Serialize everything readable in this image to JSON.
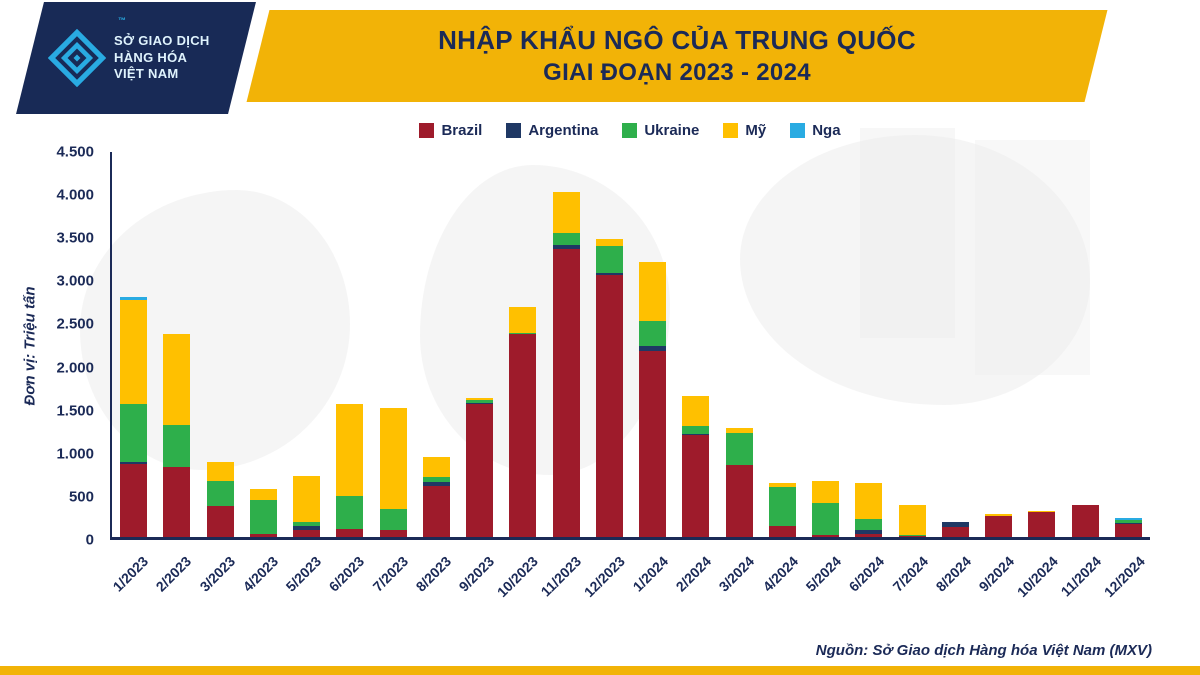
{
  "header": {
    "logo": {
      "line1": "SỞ GIAO DỊCH",
      "line2": "HÀNG HÓA",
      "line3": "VIỆT NAM",
      "tm": "™"
    },
    "title_line1": "NHẬP KHẨU NGÔ CỦA TRUNG QUỐC",
    "title_line2": "GIAI ĐOẠN 2023 - 2024"
  },
  "colors": {
    "navy": "#1B2A57",
    "banner_yellow": "#F2B307",
    "logo_cyan": "#29ABE2"
  },
  "chart_data": {
    "type": "bar",
    "stacked": true,
    "title": "NHẬP KHẨU NGÔ CỦA TRUNG QUỐC GIAI ĐOẠN 2023 - 2024",
    "ylabel": "Đơn vị: Triệu tấn",
    "xlabel": "",
    "ylim": [
      0,
      4500
    ],
    "ytick_step": 500,
    "ytick_labels": [
      "0",
      "500",
      "1.000",
      "1.500",
      "2.000",
      "2.500",
      "3.000",
      "3.500",
      "4.000",
      "4.500"
    ],
    "grid": false,
    "legend_position": "top",
    "categories": [
      "1/2023",
      "2/2023",
      "3/2023",
      "4/2023",
      "5/2023",
      "6/2023",
      "7/2023",
      "8/2023",
      "9/2023",
      "10/2023",
      "11/2023",
      "12/2023",
      "1/2024",
      "2/2024",
      "3/2024",
      "4/2024",
      "5/2024",
      "6/2024",
      "7/2024",
      "8/2024",
      "9/2024",
      "10/2024",
      "11/2024",
      "12/2024"
    ],
    "series": [
      {
        "name": "Brazil",
        "color": "#9E1B2B",
        "values": [
          850,
          820,
          360,
          30,
          80,
          90,
          80,
          600,
          1550,
          2370,
          3370,
          3060,
          2180,
          1190,
          840,
          130,
          20,
          40,
          10,
          120,
          240,
          290,
          370,
          150
        ]
      },
      {
        "name": "Argentina",
        "color": "#1F3864",
        "values": [
          30,
          0,
          0,
          0,
          50,
          0,
          0,
          40,
          20,
          0,
          40,
          30,
          50,
          20,
          0,
          0,
          0,
          40,
          0,
          50,
          10,
          0,
          0,
          10
        ]
      },
      {
        "name": "Ukraine",
        "color": "#2EAF4B",
        "values": [
          680,
          490,
          300,
          400,
          40,
          390,
          250,
          60,
          30,
          20,
          140,
          310,
          290,
          90,
          380,
          460,
          380,
          130,
          10,
          10,
          0,
          0,
          0,
          40
        ]
      },
      {
        "name": "Mỹ",
        "color": "#FFC000",
        "values": [
          1210,
          1060,
          220,
          130,
          540,
          1080,
          1180,
          230,
          20,
          300,
          480,
          80,
          690,
          350,
          60,
          40,
          260,
          420,
          350,
          0,
          20,
          10,
          0,
          0
        ]
      },
      {
        "name": "Nga",
        "color": "#29ABE2",
        "values": [
          40,
          0,
          0,
          0,
          0,
          0,
          0,
          0,
          0,
          0,
          0,
          0,
          0,
          0,
          0,
          0,
          0,
          0,
          0,
          0,
          0,
          0,
          0,
          20
        ]
      }
    ]
  },
  "source": "Nguồn: Sở Giao dịch Hàng hóa Việt Nam (MXV)"
}
